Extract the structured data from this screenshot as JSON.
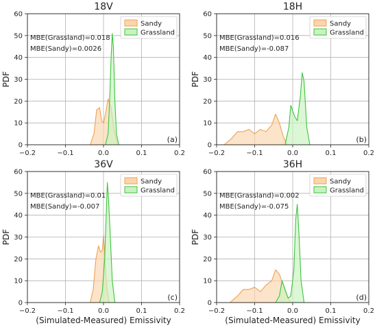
{
  "colors": {
    "sandy_stroke": "#f0a050",
    "sandy_fill": "#fbd5ae",
    "grassland_stroke": "#3cc43c",
    "grassland_fill": "#c9f2c0",
    "grid": "#b0b0b0"
  },
  "chart_data": [
    {
      "type": "area",
      "title": "18V",
      "panel_label": "(a)",
      "xlabel": "",
      "ylabel": "PDF",
      "xlim": [
        -0.2,
        0.2
      ],
      "ylim": [
        0,
        60
      ],
      "xticks": [
        "−0.2",
        "−0.1",
        "0.0",
        "0.1",
        "0.2"
      ],
      "yticks": [
        "0",
        "10",
        "20",
        "30",
        "40",
        "50",
        "60"
      ],
      "grid": true,
      "legend_position": "top-right",
      "annotations": [
        "MBE(Grassland)=0.018",
        "MBE(Sandy)=0.0026"
      ],
      "series": [
        {
          "name": "Sandy",
          "x": [
            -0.035,
            -0.025,
            -0.018,
            -0.01,
            -0.005,
            0.0,
            0.005,
            0.012,
            0.02,
            0.027,
            0.034,
            0.04
          ],
          "y": [
            0,
            5,
            16,
            17,
            11,
            10,
            14,
            21,
            17,
            8,
            2,
            0
          ]
        },
        {
          "name": "Grassland",
          "x": [
            0.005,
            0.012,
            0.016,
            0.02,
            0.023,
            0.026,
            0.03,
            0.034,
            0.04
          ],
          "y": [
            0,
            5,
            20,
            40,
            51,
            45,
            20,
            5,
            0
          ]
        }
      ]
    },
    {
      "type": "area",
      "title": "18H",
      "panel_label": "(b)",
      "xlabel": "",
      "ylabel": "PDF",
      "xlim": [
        -0.2,
        0.2
      ],
      "ylim": [
        0,
        60
      ],
      "xticks": [
        "−0.2",
        "−0.1",
        "0.0",
        "0.1",
        "0.2"
      ],
      "yticks": [
        "0",
        "10",
        "20",
        "30",
        "40",
        "50",
        "60"
      ],
      "grid": true,
      "legend_position": "top-right",
      "annotations": [
        "MBE(Grassland)=0.016",
        "MBE(Sandy)=-0.087"
      ],
      "series": [
        {
          "name": "Sandy",
          "x": [
            -0.18,
            -0.16,
            -0.145,
            -0.13,
            -0.115,
            -0.1,
            -0.085,
            -0.07,
            -0.055,
            -0.045,
            -0.035,
            -0.025,
            -0.015
          ],
          "y": [
            0,
            3,
            6,
            6,
            7,
            5,
            7,
            6,
            9,
            14,
            10,
            4,
            0
          ]
        },
        {
          "name": "Grassland",
          "x": [
            -0.02,
            -0.01,
            -0.005,
            0.005,
            0.012,
            0.02,
            0.025,
            0.03,
            0.037,
            0.045
          ],
          "y": [
            0,
            8,
            18,
            13,
            11,
            22,
            33,
            29,
            8,
            0
          ]
        }
      ]
    },
    {
      "type": "area",
      "title": "36V",
      "panel_label": "(c)",
      "xlabel": "(Simulated-Measured) Emissivity",
      "ylabel": "PDF",
      "xlim": [
        -0.2,
        0.2
      ],
      "ylim": [
        0,
        60
      ],
      "xticks": [
        "−0.2",
        "−0.1",
        "0.0",
        "0.1",
        "0.2"
      ],
      "yticks": [
        "0",
        "10",
        "20",
        "30",
        "40",
        "50",
        "60"
      ],
      "grid": true,
      "legend_position": "top-right",
      "annotations": [
        "MBE(Grassland)=0.01",
        "MBE(Sandy)=-0.007"
      ],
      "series": [
        {
          "name": "Sandy",
          "x": [
            -0.035,
            -0.027,
            -0.02,
            -0.013,
            -0.008,
            -0.003,
            0.0,
            0.003,
            0.008,
            0.015
          ],
          "y": [
            0,
            6,
            20,
            26,
            23,
            24,
            31,
            22,
            8,
            0
          ]
        },
        {
          "name": "Grassland",
          "x": [
            -0.01,
            -0.003,
            0.003,
            0.007,
            0.01,
            0.013,
            0.018,
            0.023,
            0.03
          ],
          "y": [
            0,
            5,
            20,
            40,
            55,
            48,
            30,
            10,
            0
          ]
        }
      ]
    },
    {
      "type": "area",
      "title": "36H",
      "panel_label": "(d)",
      "xlabel": "(Simulated-Measured) Emissivity",
      "ylabel": "PDF",
      "xlim": [
        -0.2,
        0.2
      ],
      "ylim": [
        0,
        60
      ],
      "xticks": [
        "−0.2",
        "−0.1",
        "0.0",
        "0.1",
        "0.2"
      ],
      "yticks": [
        "0",
        "10",
        "20",
        "30",
        "40",
        "50",
        "60"
      ],
      "grid": true,
      "legend_position": "top-right",
      "annotations": [
        "MBE(Grassland)=0.002",
        "MBE(Sandy)=-0.075"
      ],
      "series": [
        {
          "name": "Sandy",
          "x": [
            -0.165,
            -0.145,
            -0.13,
            -0.115,
            -0.1,
            -0.085,
            -0.07,
            -0.055,
            -0.045,
            -0.035,
            -0.025,
            -0.015,
            -0.005
          ],
          "y": [
            0,
            3,
            6,
            6,
            7,
            5,
            8,
            10,
            15,
            13,
            8,
            3,
            0
          ]
        },
        {
          "name": "Grassland",
          "x": [
            -0.045,
            -0.035,
            -0.028,
            -0.02,
            -0.012,
            -0.005,
            0.003,
            0.008,
            0.012,
            0.017,
            0.022,
            0.03
          ],
          "y": [
            0,
            3,
            10,
            6,
            2,
            3,
            15,
            38,
            45,
            30,
            10,
            0
          ]
        }
      ]
    }
  ]
}
